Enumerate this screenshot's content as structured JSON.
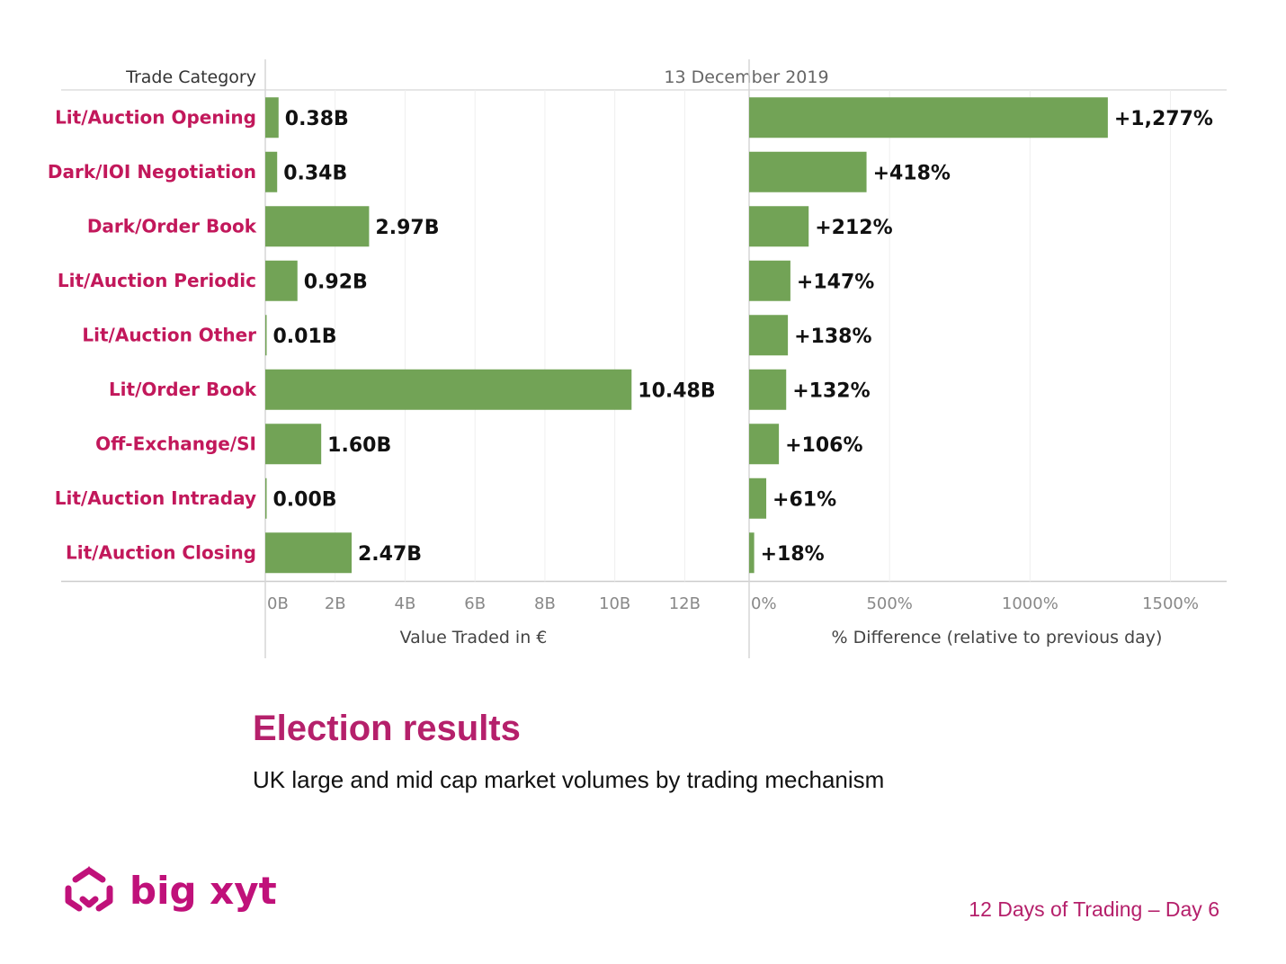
{
  "chart_data": {
    "type": "bar",
    "orientation": "horizontal",
    "date_header": "13 December 2019",
    "category_header": "Trade Category",
    "categories": [
      "Lit/Auction Opening",
      "Dark/IOI Negotiation",
      "Dark/Order Book",
      "Lit/Auction Periodic",
      "Lit/Auction Other",
      "Lit/Order Book",
      "Off-Exchange/SI",
      "Lit/Auction Intraday",
      "Lit/Auction Closing"
    ],
    "panels": [
      {
        "xlabel": "Value Traded in €",
        "values": [
          0.38,
          0.34,
          2.97,
          0.92,
          0.01,
          10.48,
          1.6,
          0.0,
          2.47
        ],
        "value_labels": [
          "0.38B",
          "0.34B",
          "2.97B",
          "0.92B",
          "0.01B",
          "10.48B",
          "1.60B",
          "0.00B",
          "2.47B"
        ],
        "xlim": [
          0,
          13.2
        ],
        "ticks": [
          0,
          2,
          4,
          6,
          8,
          10,
          12
        ],
        "tick_labels": [
          "0B",
          "2B",
          "4B",
          "6B",
          "8B",
          "10B",
          "12B"
        ]
      },
      {
        "xlabel": "% Difference (relative to previous day)",
        "values": [
          1277,
          418,
          212,
          147,
          138,
          132,
          106,
          61,
          18
        ],
        "value_labels": [
          "+1,277%",
          "+418%",
          "+212%",
          "+147%",
          "+138%",
          "+132%",
          "+106%",
          "+61%",
          "+18%"
        ],
        "xlim": [
          0,
          1700
        ],
        "ticks": [
          0,
          500,
          1000,
          1500
        ],
        "tick_labels": [
          "0%",
          "500%",
          "1000%",
          "1500%"
        ]
      }
    ],
    "bar_color": "#72a356",
    "category_color": "#c2185b",
    "grid": "vertical"
  },
  "slide": {
    "title": "Election results",
    "subtitle": "UK large and mid cap market volumes by trading mechanism",
    "footer": "12 Days of Trading – Day 6"
  },
  "logo": {
    "text": "big xyt",
    "icon": "big-xyt-logo-icon",
    "color": "#c0117a"
  }
}
